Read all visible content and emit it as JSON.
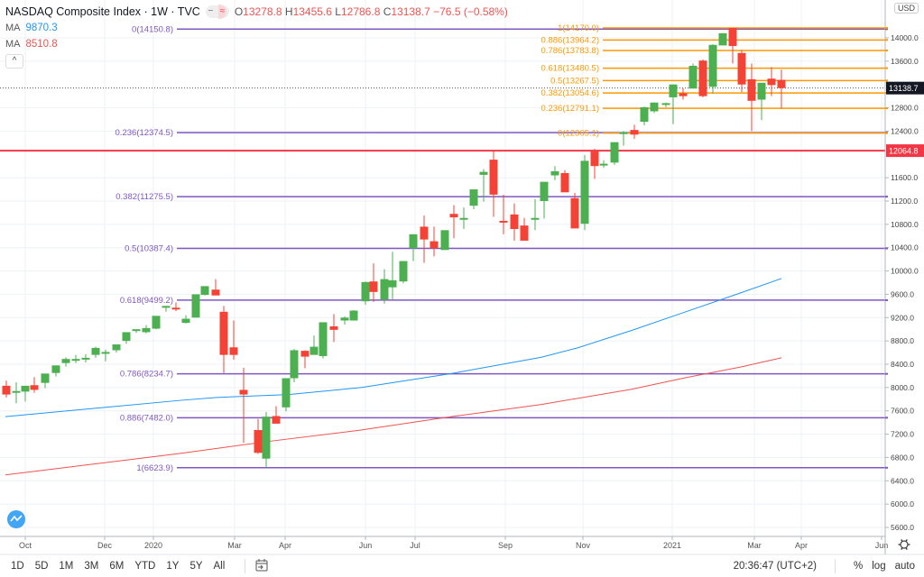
{
  "header": {
    "title": "NASDAQ Composite Index · 1W · TVC",
    "ohlc": {
      "o_label": "O",
      "o": "13278.8",
      "h_label": "H",
      "h": "13455.6",
      "l_label": "L",
      "l": "12786.8",
      "c_label": "C",
      "c": "13138.7",
      "change": "−76.5 (−0.58%)"
    },
    "ma1": {
      "label": "MA",
      "value": "9870.3",
      "color": "#2196f3"
    },
    "ma2": {
      "label": "MA",
      "value": "8510.8",
      "color": "#ef5350"
    },
    "collapse_icon": "^"
  },
  "price_axis": {
    "currency": "USD",
    "ticks": [
      "14000.0",
      "13600.0",
      "12800.0",
      "12400.0",
      "11600.0",
      "11200.0",
      "10800.0",
      "10400.0",
      "10000.0",
      "9600.0",
      "9200.0",
      "8800.0",
      "8400.0",
      "8000.0",
      "7600.0",
      "7200.0",
      "6800.0",
      "6400.0",
      "6000.0",
      "5600.0"
    ],
    "last_price": "13138.7",
    "red_line_price": "12064.8"
  },
  "time_axis": {
    "labels": [
      "Oct",
      "Dec",
      "2020",
      "Mar",
      "Apr",
      "Jun",
      "Jul",
      "Sep",
      "Nov",
      "2021",
      "Mar",
      "Apr",
      "Jun"
    ]
  },
  "bottom_bar": {
    "ranges": [
      "1D",
      "5D",
      "1M",
      "3M",
      "6M",
      "YTD",
      "1Y",
      "5Y",
      "All"
    ],
    "time": "20:36:47 (UTC+2)",
    "percent": "%",
    "log": "log",
    "auto": "auto"
  },
  "colors": {
    "up": "#4caf50",
    "down": "#f44336",
    "fib_purple": "#7e57c2",
    "fib_orange": "#ff9800",
    "ma_fast": "#2196f3",
    "ma_slow": "#ef5350",
    "red_line": "#f23645"
  },
  "chart_data": {
    "type": "candlestick",
    "title": "NASDAQ Composite Index · 1W · TVC",
    "xlabel": "",
    "ylabel": "USD",
    "ylim": [
      5400,
      14400
    ],
    "fib_large": [
      {
        "label": "0(14150.8)",
        "price": 14150.8
      },
      {
        "label": "0.236(12374.5)",
        "price": 12374.5
      },
      {
        "label": "0.382(11275.5)",
        "price": 11275.5
      },
      {
        "label": "0.5(10387.4)",
        "price": 10387.4
      },
      {
        "label": "0.618(9499.2)",
        "price": 9499.2
      },
      {
        "label": "0.786(8234.7)",
        "price": 8234.7
      },
      {
        "label": "0.886(7482.0)",
        "price": 7482.0
      },
      {
        "label": "1(6623.9)",
        "price": 6623.9
      }
    ],
    "fib_small": [
      {
        "label": "1(14170.0)",
        "price": 14170.0
      },
      {
        "label": "0.886(13964.2)",
        "price": 13964.2
      },
      {
        "label": "0.786(13783.8)",
        "price": 13783.8
      },
      {
        "label": "0.618(13480.5)",
        "price": 13480.5
      },
      {
        "label": "0.5(13267.5)",
        "price": 13267.5
      },
      {
        "label": "0.382(13054.6)",
        "price": 13054.6
      },
      {
        "label": "0.236(12791.1)",
        "price": 12791.1
      },
      {
        "label": "0(12365.1)",
        "price": 12365.1
      }
    ],
    "horizontal_line": 12064.8,
    "ma_fast": {
      "name": "MA",
      "last": 9870.3,
      "points": [
        [
          6,
          7500
        ],
        [
          200,
          7780
        ],
        [
          240,
          7830
        ],
        [
          320,
          7880
        ],
        [
          400,
          8000
        ],
        [
          500,
          8240
        ],
        [
          600,
          8520
        ],
        [
          640,
          8680
        ],
        [
          700,
          8980
        ],
        [
          760,
          9300
        ],
        [
          820,
          9620
        ],
        [
          866,
          9870
        ]
      ]
    },
    "ma_slow": {
      "name": "MA",
      "last": 8510.8,
      "points": [
        [
          6,
          6500
        ],
        [
          200,
          6870
        ],
        [
          300,
          7080
        ],
        [
          400,
          7270
        ],
        [
          500,
          7500
        ],
        [
          600,
          7710
        ],
        [
          700,
          7970
        ],
        [
          760,
          8170
        ],
        [
          820,
          8350
        ],
        [
          866,
          8510
        ]
      ]
    },
    "candles_xywh_note": "[x, open, high, low, close]",
    "candles": [
      [
        7,
        8030,
        8120,
        7830,
        7880
      ],
      [
        18,
        7930,
        8090,
        7730,
        7940
      ],
      [
        28,
        7930,
        8000,
        7760,
        8030
      ],
      [
        38,
        8040,
        8180,
        7910,
        7960
      ],
      [
        50,
        8080,
        8200,
        7990,
        8240
      ],
      [
        62,
        8250,
        8340,
        8190,
        8380
      ],
      [
        73,
        8420,
        8520,
        8360,
        8490
      ],
      [
        84,
        8480,
        8560,
        8420,
        8490
      ],
      [
        95,
        8490,
        8570,
        8430,
        8510
      ],
      [
        106,
        8560,
        8700,
        8510,
        8680
      ],
      [
        117,
        8600,
        8650,
        8450,
        8610
      ],
      [
        129,
        8640,
        8700,
        8600,
        8740
      ],
      [
        140,
        8800,
        8850,
        8750,
        8950
      ],
      [
        151,
        8970,
        9000,
        8940,
        9000
      ],
      [
        162,
        8950,
        9070,
        8930,
        9020
      ],
      [
        173,
        9010,
        9150,
        9000,
        9230
      ],
      [
        184,
        9370,
        9400,
        9300,
        9400
      ],
      [
        195,
        9370,
        9460,
        9310,
        9350
      ],
      [
        206,
        9110,
        9240,
        9100,
        9180
      ],
      [
        217,
        9200,
        9530,
        9200,
        9600
      ],
      [
        227,
        9590,
        9730,
        9580,
        9740
      ],
      [
        239,
        9680,
        9860,
        9620,
        9580
      ],
      [
        248,
        9300,
        9400,
        8250,
        8560
      ],
      [
        259,
        8690,
        9150,
        8480,
        8560
      ],
      [
        270,
        7960,
        8340,
        7050,
        7880
      ],
      [
        286,
        7270,
        7460,
        6860,
        6880
      ],
      [
        295,
        6780,
        7580,
        6630,
        7500
      ],
      [
        306,
        7510,
        7680,
        7420,
        7380
      ],
      [
        317,
        7660,
        8050,
        7590,
        8160
      ],
      [
        326,
        8160,
        8660,
        8090,
        8640
      ],
      [
        338,
        8630,
        8640,
        8330,
        8530
      ],
      [
        348,
        8560,
        8890,
        8570,
        8700
      ],
      [
        358,
        8540,
        9080,
        8500,
        9120
      ],
      [
        370,
        9050,
        9260,
        8780,
        8990
      ],
      [
        382,
        9150,
        9220,
        9080,
        9200
      ],
      [
        392,
        9150,
        9330,
        9220,
        9320
      ],
      [
        405,
        9480,
        9820,
        9420,
        9810
      ],
      [
        414,
        9820,
        10130,
        9470,
        9640
      ],
      [
        426,
        9510,
        10030,
        9440,
        9860
      ],
      [
        435,
        9720,
        10330,
        9510,
        9840
      ],
      [
        447,
        9820,
        10000,
        9790,
        10170
      ],
      [
        458,
        10390,
        10490,
        10170,
        10630
      ],
      [
        470,
        10760,
        10950,
        10140,
        10540
      ],
      [
        481,
        10510,
        10760,
        10250,
        10390
      ],
      [
        493,
        10360,
        10680,
        10370,
        10700
      ],
      [
        503,
        10980,
        11130,
        10560,
        10920
      ],
      [
        514,
        10910,
        11090,
        10720,
        10910
      ],
      [
        525,
        11120,
        11330,
        11060,
        11400
      ],
      [
        536,
        11650,
        11750,
        11190,
        11700
      ],
      [
        547,
        11910,
        12070,
        10930,
        11310
      ],
      [
        558,
        10860,
        11310,
        10630,
        10830
      ],
      [
        570,
        10970,
        11160,
        10520,
        10720
      ],
      [
        581,
        10780,
        10910,
        10590,
        10520
      ],
      [
        593,
        10900,
        11230,
        10700,
        10910
      ],
      [
        603,
        11200,
        11410,
        10900,
        11530
      ],
      [
        615,
        11640,
        11800,
        11560,
        11710
      ],
      [
        626,
        11680,
        11730,
        11410,
        11350
      ],
      [
        637,
        11250,
        11340,
        10800,
        10730
      ],
      [
        648,
        10810,
        11990,
        10700,
        11890
      ],
      [
        659,
        12050,
        12100,
        11580,
        11800
      ],
      [
        669,
        11810,
        11900,
        11770,
        11840
      ],
      [
        681,
        11860,
        12120,
        11820,
        12210
      ],
      [
        691,
        12380,
        12400,
        12150,
        12380
      ],
      [
        703,
        12420,
        12510,
        12270,
        12340
      ],
      [
        714,
        12560,
        12820,
        12500,
        12810
      ],
      [
        725,
        12740,
        12890,
        12710,
        12890
      ],
      [
        738,
        12860,
        12890,
        12810,
        12880
      ],
      [
        746,
        12980,
        13200,
        12520,
        13200
      ],
      [
        757,
        13050,
        13140,
        12940,
        13000
      ],
      [
        768,
        13130,
        13560,
        13150,
        13520
      ],
      [
        779,
        13610,
        13630,
        12980,
        13000
      ],
      [
        790,
        13160,
        13890,
        13040,
        13880
      ],
      [
        801,
        13870,
        14000,
        13940,
        14080
      ],
      [
        812,
        14170,
        14170,
        13560,
        13860
      ],
      [
        822,
        13740,
        13790,
        13070,
        13200
      ],
      [
        833,
        13290,
        13560,
        12400,
        12920
      ],
      [
        844,
        12940,
        13160,
        12590,
        13230
      ],
      [
        855,
        13300,
        13500,
        13000,
        13190
      ],
      [
        866,
        13278.8,
        13455.6,
        12786.8,
        13138.7
      ]
    ]
  }
}
